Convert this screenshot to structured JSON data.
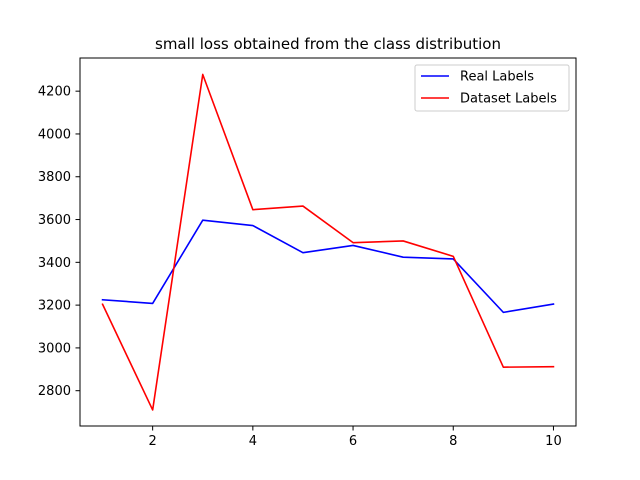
{
  "chart_data": {
    "type": "line",
    "title": "small loss obtained from the class distribution",
    "xlabel": "",
    "ylabel": "",
    "x": [
      1,
      2,
      3,
      4,
      5,
      6,
      7,
      8,
      9,
      10
    ],
    "xlim": [
      0.55,
      10.45
    ],
    "ylim": [
      2635,
      4355
    ],
    "xticks": [
      2,
      4,
      6,
      8,
      10
    ],
    "yticks": [
      2800,
      3000,
      3200,
      3400,
      3600,
      3800,
      4000,
      4200
    ],
    "grid": false,
    "legend_position": "top-right",
    "series": [
      {
        "name": "Real Labels",
        "color": "#0000ff",
        "values": [
          3225,
          3208,
          3597,
          3572,
          3445,
          3479,
          3424,
          3416,
          3166,
          3205
        ]
      },
      {
        "name": "Dataset Labels",
        "color": "#ff0000",
        "values": [
          3204,
          2710,
          4278,
          3646,
          3663,
          3492,
          3500,
          3428,
          2910,
          2912
        ]
      }
    ]
  }
}
